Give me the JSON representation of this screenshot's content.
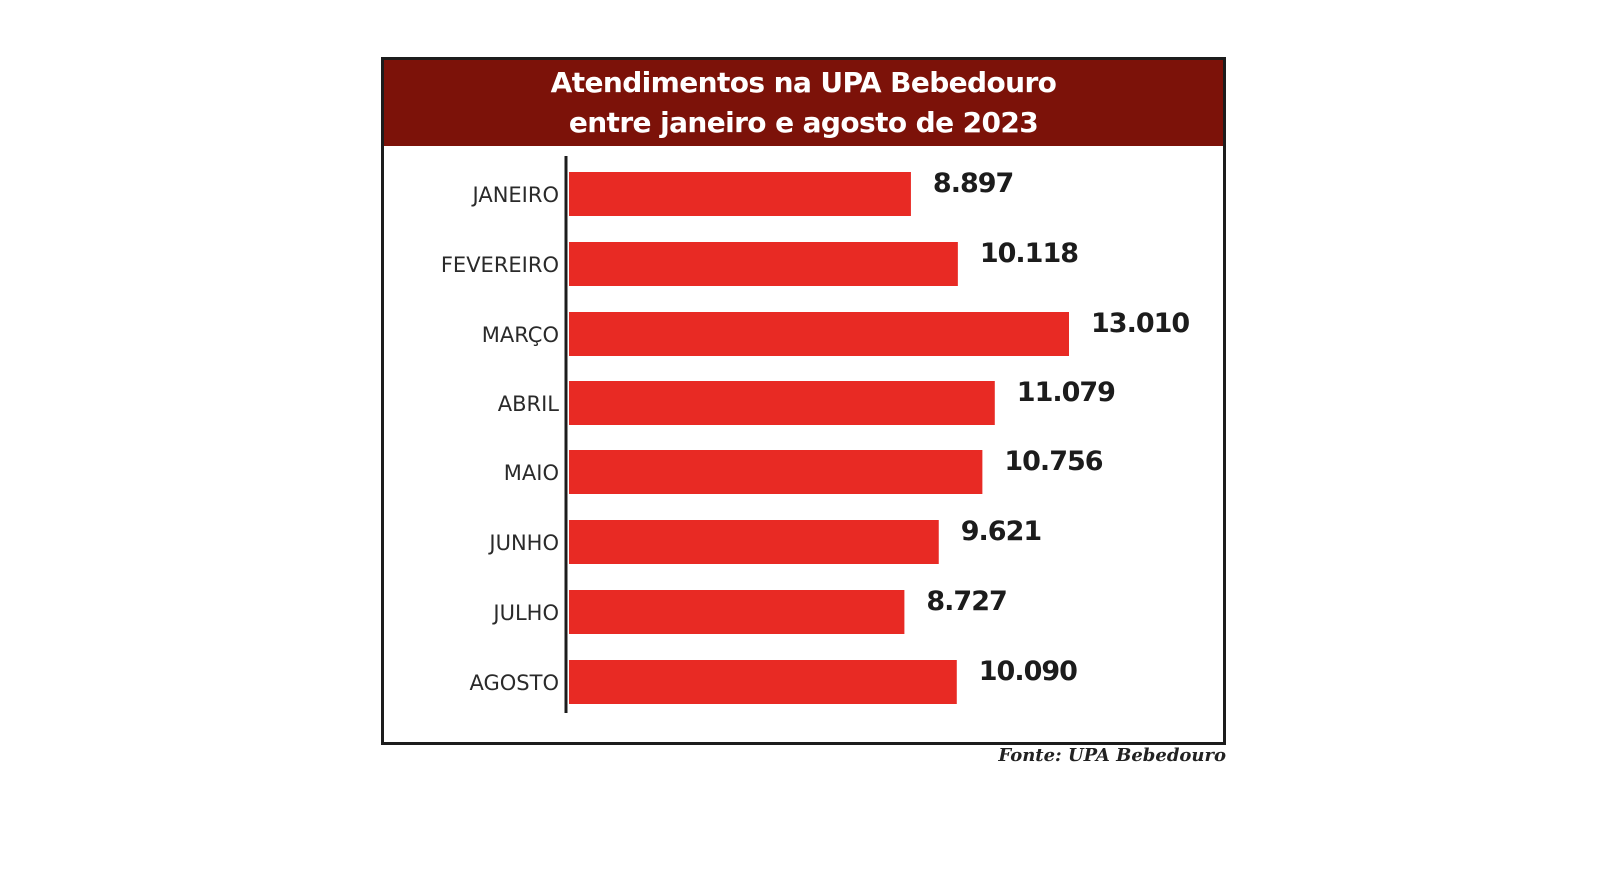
{
  "chart_data": {
    "type": "bar",
    "orientation": "horizontal",
    "title_lines": [
      "Atendimentos na UPA Bebedouro",
      "entre janeiro e agosto de 2023"
    ],
    "categories": [
      "JANEIRO",
      "FEVEREIRO",
      "MARÇO",
      "ABRIL",
      "MAIO",
      "JUNHO",
      "JULHO",
      "AGOSTO"
    ],
    "values": [
      8897,
      10118,
      13010,
      11079,
      10756,
      9621,
      8727,
      10090
    ],
    "value_labels": [
      "8.897",
      "10.118",
      "13.010",
      "11.079",
      "10.756",
      "9.621",
      "8.727",
      "10.090"
    ],
    "xlim": [
      0,
      13010
    ],
    "grid": false,
    "legend": "none",
    "source": "Fonte: UPA Bebedouro"
  },
  "colors": {
    "header": "#7c1209",
    "bar": "#e82a24",
    "axis": "#1c1c1c",
    "label": "#2a2a2a",
    "value": "#1c1c1c"
  }
}
